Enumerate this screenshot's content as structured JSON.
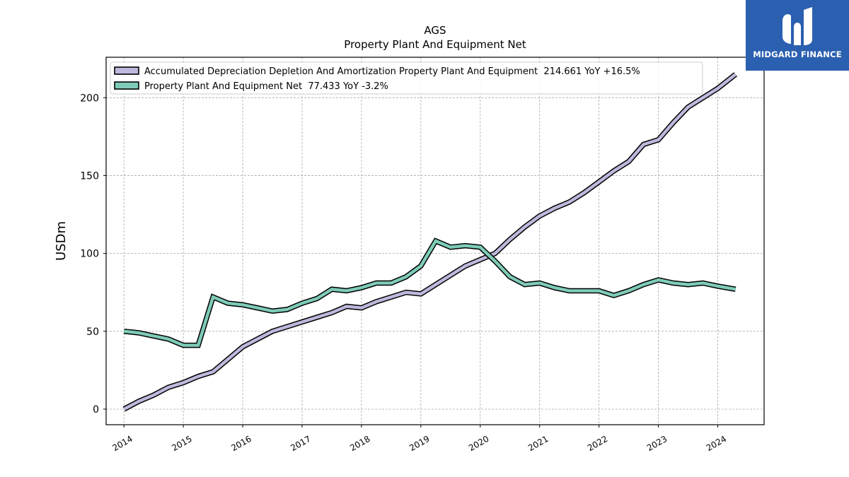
{
  "brand": {
    "name": "MIDGARD FINANCE",
    "color": "#2b5fb0"
  },
  "chart_data": {
    "type": "line",
    "title": "AGS",
    "subtitle": "Property Plant And Equipment Net",
    "ylabel": "USDm",
    "xlabel": "",
    "xlim": [
      2013.7,
      2024.78
    ],
    "ylim": [
      -10,
      226
    ],
    "yticks": [
      0,
      50,
      100,
      150,
      200
    ],
    "xticks": [
      "2014",
      "2015",
      "2016",
      "2017",
      "2018",
      "2019",
      "2020",
      "2021",
      "2022",
      "2023",
      "2024"
    ],
    "grid": true,
    "legend_position": "top-left",
    "series": [
      {
        "name": "Accumulated Depreciation Depletion And Amortization Property Plant And Equipment  214.661 YoY +16.5%",
        "color": "#bdb8dc",
        "x": [
          2014.0,
          2014.25,
          2014.5,
          2014.75,
          2015.0,
          2015.25,
          2015.5,
          2015.75,
          2016.0,
          2016.25,
          2016.5,
          2016.75,
          2017.0,
          2017.25,
          2017.5,
          2017.75,
          2018.0,
          2018.25,
          2018.5,
          2018.75,
          2019.0,
          2019.25,
          2019.5,
          2019.75,
          2020.0,
          2020.25,
          2020.5,
          2020.75,
          2021.0,
          2021.25,
          2021.5,
          2021.75,
          2022.0,
          2022.25,
          2022.5,
          2022.75,
          2023.0,
          2023.25,
          2023.5,
          2023.75,
          2024.0,
          2024.3
        ],
        "y": [
          0,
          5,
          9,
          14,
          17,
          21,
          24,
          32,
          40,
          45,
          50,
          53,
          56,
          59,
          62,
          66,
          65,
          69,
          72,
          75,
          74,
          80,
          86,
          92,
          96,
          100,
          109,
          117,
          124,
          129,
          133,
          139,
          146,
          153,
          159,
          170,
          173,
          184,
          194,
          200,
          206,
          215
        ]
      },
      {
        "name": "Property Plant And Equipment Net  77.433 YoY -3.2%",
        "color": "#7ecbb8",
        "x": [
          2014.0,
          2014.25,
          2014.5,
          2014.75,
          2015.0,
          2015.25,
          2015.5,
          2015.75,
          2016.0,
          2016.25,
          2016.5,
          2016.75,
          2017.0,
          2017.25,
          2017.5,
          2017.75,
          2018.0,
          2018.25,
          2018.5,
          2018.75,
          2019.0,
          2019.25,
          2019.5,
          2019.75,
          2020.0,
          2020.25,
          2020.5,
          2020.75,
          2021.0,
          2021.25,
          2021.5,
          2021.75,
          2022.0,
          2022.25,
          2022.5,
          2022.75,
          2023.0,
          2023.25,
          2023.5,
          2023.75,
          2024.0,
          2024.3
        ],
        "y": [
          50,
          49,
          47,
          45,
          41,
          41,
          72,
          68,
          67,
          65,
          63,
          64,
          68,
          71,
          77,
          76,
          78,
          81,
          81,
          85,
          92,
          108,
          104,
          105,
          104,
          95,
          85,
          80,
          81,
          78,
          76,
          76,
          76,
          73,
          76,
          80,
          83,
          81,
          80,
          81,
          79,
          77
        ]
      }
    ]
  }
}
